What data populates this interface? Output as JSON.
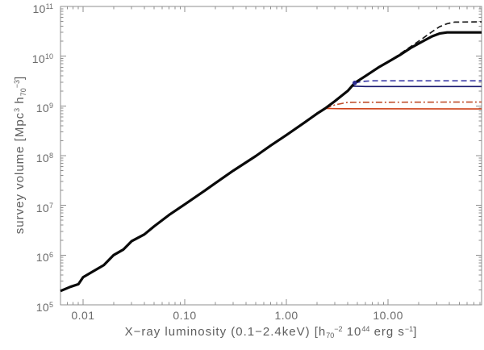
{
  "figure": {
    "background": "#ffffff",
    "frame_color": "#8f8f8f",
    "tick_color": "#8f8f8f",
    "tick_label_color": "#6a6a6a",
    "axis_title_color": "#5f5f5f"
  },
  "chart_data": {
    "type": "line",
    "title": "",
    "x_scale": "log",
    "y_scale": "log",
    "xlim": [
      0.006,
      83
    ],
    "ylim": [
      100000.0,
      100000000000.0
    ],
    "grid": false,
    "legend": "none",
    "xlabel_segments": [
      {
        "t": "X−ray luminosity (0.1−2.4keV)  [h"
      },
      {
        "t": "70",
        "style": "sub"
      },
      {
        "t": "−2",
        "style": "sup"
      },
      {
        "t": " 10"
      },
      {
        "t": "44",
        "style": "sup"
      },
      {
        "t": "  erg s"
      },
      {
        "t": "−1",
        "style": "sup"
      },
      {
        "t": "]"
      }
    ],
    "ylabel_segments": [
      {
        "t": "survey volume  [Mpc"
      },
      {
        "t": "3",
        "style": "sup"
      },
      {
        "t": " h"
      },
      {
        "t": "70",
        "style": "sub"
      },
      {
        "t": "−3",
        "style": "sup"
      },
      {
        "t": "]"
      }
    ],
    "x_major_ticks": [
      {
        "value": 0.01,
        "label": "0.01"
      },
      {
        "value": 0.1,
        "label": "0.10"
      },
      {
        "value": 1.0,
        "label": "1.00"
      },
      {
        "value": 10.0,
        "label": "10.00"
      }
    ],
    "y_major_ticks": [
      {
        "value": 100000.0,
        "base": "10",
        "exp": "5"
      },
      {
        "value": 1000000.0,
        "base": "10",
        "exp": "6"
      },
      {
        "value": 10000000.0,
        "base": "10",
        "exp": "7"
      },
      {
        "value": 100000000.0,
        "base": "10",
        "exp": "8"
      },
      {
        "value": 1000000000.0,
        "base": "10",
        "exp": "9"
      },
      {
        "value": 10000000000.0,
        "base": "10",
        "exp": "10"
      },
      {
        "value": 100000000000.0,
        "base": "10",
        "exp": "11"
      }
    ],
    "x_minor_decades": [
      -3,
      -2,
      -1,
      0,
      1
    ],
    "y_minor_decades": [
      5,
      6,
      7,
      8,
      9,
      10
    ],
    "series": [
      {
        "name": "total-survey-dashed",
        "color": "#1c1c1c",
        "width": 1.7,
        "dash": "dash",
        "points": [
          [
            0.006,
            190000.0
          ],
          [
            0.0075,
            230000.0
          ],
          [
            0.009,
            260000.0
          ],
          [
            0.01,
            360000.0
          ],
          [
            0.013,
            490000.0
          ],
          [
            0.016,
            630000.0
          ],
          [
            0.02,
            1000000.0
          ],
          [
            0.025,
            1300000.0
          ],
          [
            0.03,
            1900000.0
          ],
          [
            0.04,
            2600000.0
          ],
          [
            0.05,
            3800000.0
          ],
          [
            0.07,
            6400000.0
          ],
          [
            0.1,
            10500000.0
          ],
          [
            0.15,
            18500000.0
          ],
          [
            0.2,
            28000000.0
          ],
          [
            0.3,
            50000000.0
          ],
          [
            0.5,
            98000000.0
          ],
          [
            0.7,
            160000000.0
          ],
          [
            1.0,
            260000000.0
          ],
          [
            1.5,
            460000000.0
          ],
          [
            2.0,
            700000000.0
          ],
          [
            2.4,
            890000000.0
          ],
          [
            3.0,
            1250000000.0
          ],
          [
            4.0,
            2000000000.0
          ],
          [
            4.7,
            2900000000.0
          ],
          [
            6.0,
            4000000000.0
          ],
          [
            8.0,
            5900000000.0
          ],
          [
            10,
            7700000000.0
          ],
          [
            13,
            11000000000.0
          ],
          [
            17,
            16000000000.0
          ],
          [
            22,
            23000000000.0
          ],
          [
            27,
            31000000000.0
          ],
          [
            32,
            39000000000.0
          ],
          [
            38,
            45000000000.0
          ],
          [
            45,
            48500000000.0
          ],
          [
            83,
            49000000000.0
          ]
        ]
      },
      {
        "name": "red-subsample-dashdot",
        "color": "#bf4d2a",
        "width": 1.6,
        "dash": "dashdot",
        "points": [
          [
            2.4,
            890000000.0
          ],
          [
            3.0,
            1050000000.0
          ],
          [
            4.0,
            1180000000.0
          ],
          [
            83,
            1200000000.0
          ]
        ]
      },
      {
        "name": "red-subsample-solid",
        "color": "#cf421a",
        "width": 1.6,
        "dash": "solid",
        "points": [
          [
            2.4,
            890000000.0
          ],
          [
            3.5,
            880000000.0
          ],
          [
            83,
            870000000.0
          ]
        ]
      },
      {
        "name": "navy-subsample-solid",
        "color": "#16166e",
        "width": 1.7,
        "dash": "solid",
        "points": [
          [
            4.4,
            2500000000.0
          ],
          [
            6.0,
            2450000000.0
          ],
          [
            83,
            2450000000.0
          ]
        ]
      },
      {
        "name": "blue-subsample-dashed",
        "color": "#3b3ba8",
        "width": 1.7,
        "dash": "dash",
        "points": [
          [
            4.7,
            2900000000.0
          ],
          [
            5.5,
            3100000000.0
          ],
          [
            7.0,
            3200000000.0
          ],
          [
            83,
            3200000000.0
          ]
        ]
      },
      {
        "name": "total-survey-solid",
        "color": "#0a0a0a",
        "width": 3.2,
        "dash": "solid",
        "points": [
          [
            0.006,
            190000.0
          ],
          [
            0.0075,
            230000.0
          ],
          [
            0.009,
            260000.0
          ],
          [
            0.01,
            360000.0
          ],
          [
            0.013,
            490000.0
          ],
          [
            0.016,
            630000.0
          ],
          [
            0.02,
            1000000.0
          ],
          [
            0.025,
            1300000.0
          ],
          [
            0.03,
            1900000.0
          ],
          [
            0.04,
            2600000.0
          ],
          [
            0.05,
            3800000.0
          ],
          [
            0.07,
            6400000.0
          ],
          [
            0.1,
            10500000.0
          ],
          [
            0.15,
            18500000.0
          ],
          [
            0.2,
            28000000.0
          ],
          [
            0.3,
            50000000.0
          ],
          [
            0.5,
            98000000.0
          ],
          [
            0.7,
            160000000.0
          ],
          [
            1.0,
            260000000.0
          ],
          [
            1.5,
            460000000.0
          ],
          [
            2.0,
            700000000.0
          ],
          [
            2.4,
            890000000.0
          ],
          [
            3.0,
            1250000000.0
          ],
          [
            4.0,
            2000000000.0
          ],
          [
            4.7,
            2900000000.0
          ],
          [
            6.0,
            4000000000.0
          ],
          [
            8.0,
            5900000000.0
          ],
          [
            10,
            7700000000.0
          ],
          [
            13,
            10500000000.0
          ],
          [
            17,
            15000000000.0
          ],
          [
            22,
            20000000000.0
          ],
          [
            27,
            25000000000.0
          ],
          [
            32,
            28500000000.0
          ],
          [
            38,
            30000000000.0
          ],
          [
            83,
            30000000000.0
          ]
        ]
      }
    ],
    "markers": [
      {
        "name": "branch-point-dot",
        "x": 4.7,
        "y": 2900000000.0,
        "color": "#2b2b8f",
        "radius": 2.8
      }
    ]
  }
}
